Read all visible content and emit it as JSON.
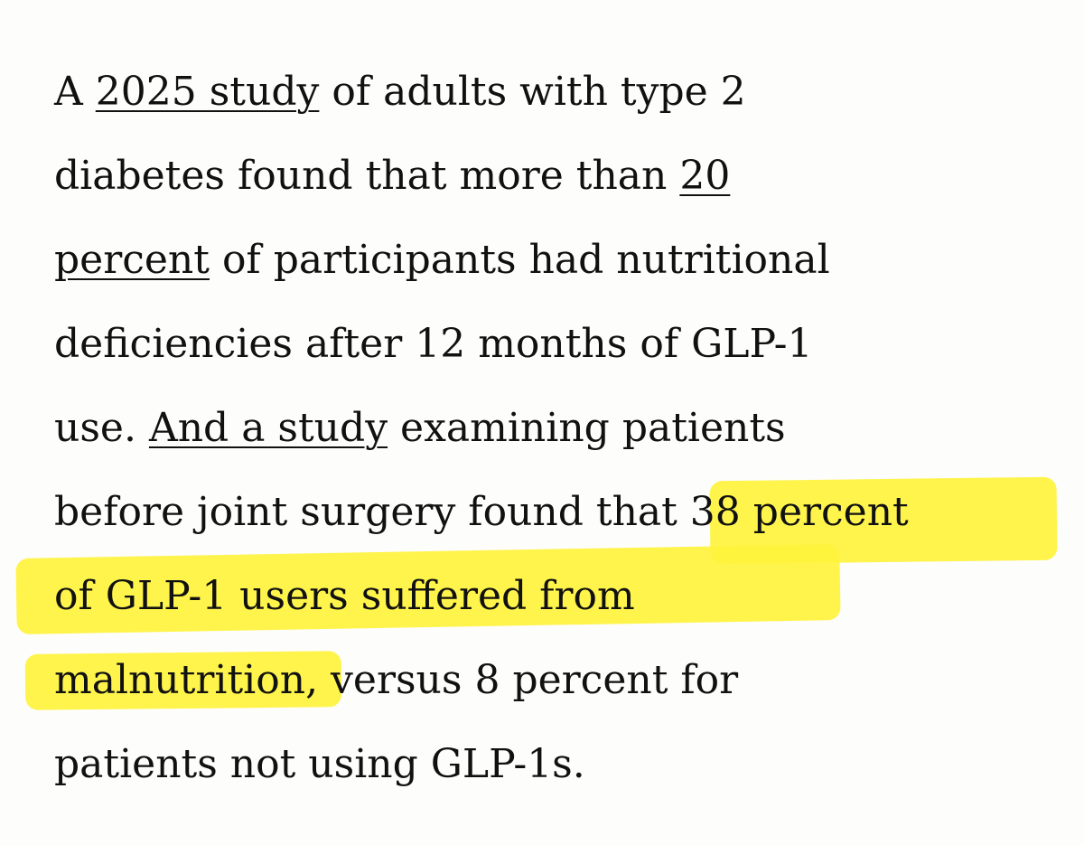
{
  "paragraph": {
    "line1": {
      "before": "A ",
      "link": "2025 study",
      "after": " of adults with type 2"
    },
    "line2": {
      "before": "diabetes found that more than ",
      "link": "20"
    },
    "line3": {
      "link": "percent",
      "after": " of participants had nutritional"
    },
    "line4": {
      "text": "deficiencies after 12 months of GLP-1"
    },
    "line5": {
      "before": "use. ",
      "link": "And a study",
      "after": " examining patients"
    },
    "line6": {
      "text": "before joint surgery found that 38 percent"
    },
    "line7": {
      "text": "of GLP-1 users suffered from"
    },
    "line8": {
      "text": "malnutrition, versus 8 percent for"
    },
    "line9": {
      "text": "patients not using GLP-1s."
    }
  },
  "highlight_color": "#fff33c",
  "text_color": "#111111",
  "background_color": "#fdfdfc"
}
